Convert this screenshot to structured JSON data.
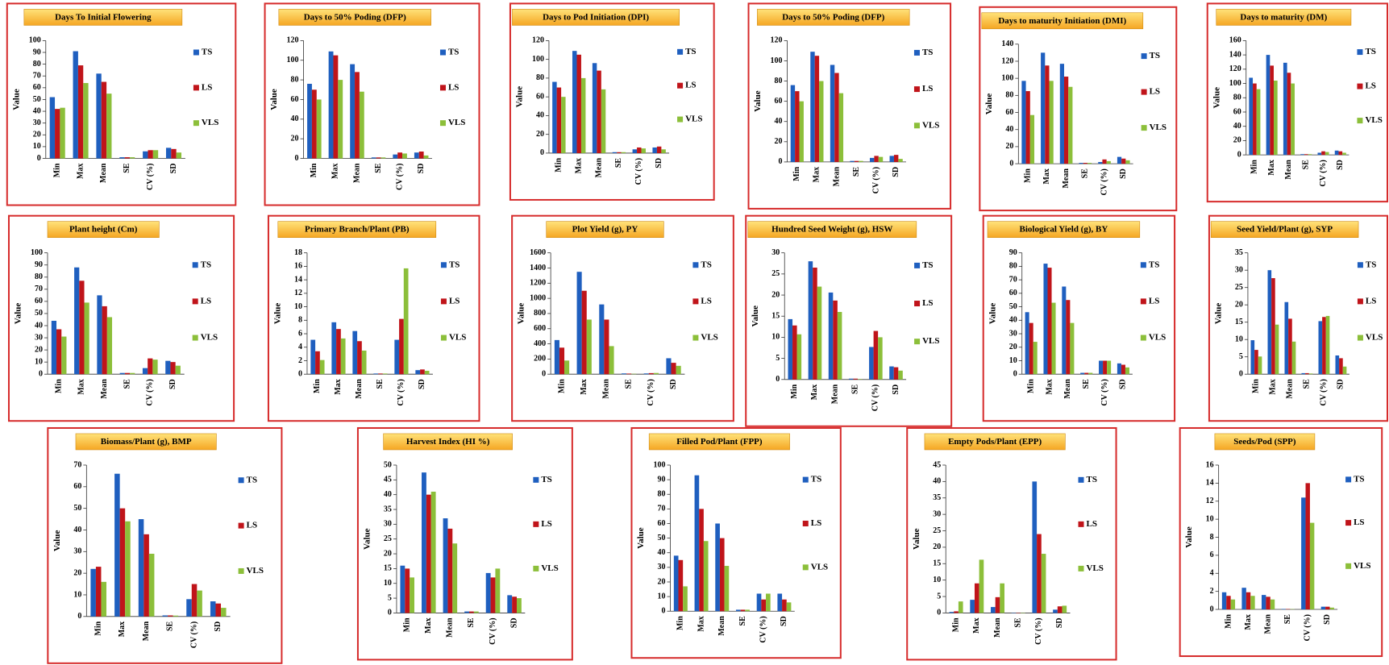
{
  "chart_data": [
    {
      "type": "bar",
      "title": "Days To Initial Flowering",
      "y_label": "Value",
      "categories": [
        "Min",
        "Max",
        "Mean",
        "SE",
        "CV (%)",
        "SD"
      ],
      "ylim": [
        0,
        100
      ],
      "yticks": [
        0,
        10,
        20,
        30,
        40,
        50,
        60,
        70,
        80,
        90,
        100
      ],
      "series": [
        {
          "name": "TS",
          "color": "#1f5fbf",
          "values": [
            52,
            91,
            72,
            1,
            6,
            9
          ]
        },
        {
          "name": "LS",
          "color": "#c0141a",
          "values": [
            42,
            79,
            65,
            1,
            7,
            8
          ]
        },
        {
          "name": "VLS",
          "color": "#8cbf3a",
          "values": [
            43,
            64,
            55,
            1,
            7,
            5
          ]
        }
      ]
    },
    {
      "type": "bar",
      "title": "Days to 50% Poding (DFP)",
      "y_label": "Value",
      "categories": [
        "Min",
        "Max",
        "Mean",
        "SE",
        "CV (%)",
        "SD"
      ],
      "ylim": [
        0,
        120
      ],
      "yticks": [
        0,
        20,
        40,
        60,
        80,
        100,
        120
      ],
      "series": [
        {
          "name": "TS",
          "color": "#1f5fbf",
          "values": [
            76,
            109,
            96,
            1,
            4,
            6
          ]
        },
        {
          "name": "LS",
          "color": "#c0141a",
          "values": [
            70,
            105,
            88,
            1,
            6,
            7
          ]
        },
        {
          "name": "VLS",
          "color": "#8cbf3a",
          "values": [
            60,
            80,
            68,
            1,
            5,
            3
          ]
        }
      ]
    },
    {
      "type": "bar",
      "title": "Days to Pod Initiation (DPI)",
      "y_label": "Value",
      "categories": [
        "Min",
        "Max",
        "Mean",
        "SE",
        "CV (%)",
        "SD"
      ],
      "ylim": [
        0,
        120
      ],
      "yticks": [
        0,
        20,
        40,
        60,
        80,
        100,
        120
      ],
      "series": [
        {
          "name": "TS",
          "color": "#1f5fbf",
          "values": [
            76,
            109,
            96,
            1,
            4,
            6
          ]
        },
        {
          "name": "LS",
          "color": "#c0141a",
          "values": [
            70,
            105,
            88,
            1,
            6,
            7
          ]
        },
        {
          "name": "VLS",
          "color": "#8cbf3a",
          "values": [
            60,
            80,
            68,
            1,
            5,
            4
          ]
        }
      ]
    },
    {
      "type": "bar",
      "title": "Days to 50% Poding (DFP)",
      "y_label": "Value",
      "categories": [
        "Min",
        "Max",
        "Mean",
        "SE",
        "CV (%)",
        "SD"
      ],
      "ylim": [
        0,
        120
      ],
      "yticks": [
        0,
        20,
        40,
        60,
        80,
        100,
        120
      ],
      "series": [
        {
          "name": "TS",
          "color": "#1f5fbf",
          "values": [
            76,
            109,
            96,
            1,
            4,
            6
          ]
        },
        {
          "name": "LS",
          "color": "#c0141a",
          "values": [
            70,
            105,
            88,
            1,
            6,
            7
          ]
        },
        {
          "name": "VLS",
          "color": "#8cbf3a",
          "values": [
            60,
            80,
            68,
            1,
            5,
            3
          ]
        }
      ]
    },
    {
      "type": "bar",
      "title": "Days to maturity Initiation (DMI)",
      "y_label": "Value",
      "categories": [
        "Min",
        "Max",
        "Mean",
        "SE",
        "CV (%)",
        "SD"
      ],
      "ylim": [
        0,
        140
      ],
      "yticks": [
        0,
        20,
        40,
        60,
        80,
        100,
        120,
        140
      ],
      "series": [
        {
          "name": "TS",
          "color": "#1f5fbf",
          "values": [
            97,
            130,
            117,
            1,
            2,
            8
          ]
        },
        {
          "name": "LS",
          "color": "#c0141a",
          "values": [
            85,
            115,
            102,
            1,
            5,
            6
          ]
        },
        {
          "name": "VLS",
          "color": "#8cbf3a",
          "values": [
            57,
            97,
            90,
            1,
            3,
            4
          ]
        }
      ]
    },
    {
      "type": "bar",
      "title": "Days to maturity (DM)",
      "y_label": "Value",
      "categories": [
        "Min",
        "Max",
        "Mean",
        "SE",
        "CV (%)",
        "SD"
      ],
      "ylim": [
        0,
        160
      ],
      "yticks": [
        0,
        20,
        40,
        60,
        80,
        100,
        120,
        140,
        160
      ],
      "series": [
        {
          "name": "TS",
          "color": "#1f5fbf",
          "values": [
            108,
            140,
            129,
            1,
            3,
            6
          ]
        },
        {
          "name": "LS",
          "color": "#c0141a",
          "values": [
            100,
            125,
            115,
            1,
            5,
            5
          ]
        },
        {
          "name": "VLS",
          "color": "#8cbf3a",
          "values": [
            92,
            104,
            100,
            1,
            4,
            3
          ]
        }
      ]
    },
    {
      "type": "bar",
      "title": "Plant height (Cm)",
      "y_label": "Value",
      "categories": [
        "Min",
        "Max",
        "Mean",
        "SE",
        "CV (%)",
        "SD"
      ],
      "ylim": [
        0,
        100
      ],
      "yticks": [
        0,
        10,
        20,
        30,
        40,
        50,
        60,
        70,
        80,
        90,
        100
      ],
      "series": [
        {
          "name": "TS",
          "color": "#1f5fbf",
          "values": [
            44,
            88,
            65,
            1,
            5,
            11
          ]
        },
        {
          "name": "LS",
          "color": "#c0141a",
          "values": [
            37,
            77,
            56,
            1,
            13,
            10
          ]
        },
        {
          "name": "VLS",
          "color": "#8cbf3a",
          "values": [
            31,
            59,
            47,
            1,
            12,
            7
          ]
        }
      ]
    },
    {
      "type": "bar",
      "title": "Primary Branch/Plant (PB)",
      "y_label": "Value",
      "categories": [
        "Min",
        "Max",
        "Mean",
        "SE",
        "CV (%)",
        "SD"
      ],
      "ylim": [
        0,
        18
      ],
      "yticks": [
        0,
        2,
        4,
        6,
        8,
        10,
        12,
        14,
        16,
        18
      ],
      "series": [
        {
          "name": "TS",
          "color": "#1f5fbf",
          "values": [
            5.1,
            7.7,
            6.4,
            0.1,
            5.1,
            0.6
          ]
        },
        {
          "name": "LS",
          "color": "#c0141a",
          "values": [
            3.4,
            6.7,
            4.9,
            0.1,
            8.2,
            0.7
          ]
        },
        {
          "name": "VLS",
          "color": "#8cbf3a",
          "values": [
            2.1,
            5.3,
            3.5,
            0.1,
            15.7,
            0.5
          ]
        }
      ]
    },
    {
      "type": "bar",
      "title": "Plot Yield (g), PY",
      "y_label": "Value",
      "categories": [
        "Min",
        "Max",
        "Mean",
        "SE",
        "CV (%)",
        "SD"
      ],
      "ylim": [
        0,
        1600
      ],
      "yticks": [
        0,
        200,
        400,
        600,
        800,
        1000,
        1200,
        1400,
        1600
      ],
      "series": [
        {
          "name": "TS",
          "color": "#1f5fbf",
          "values": [
            450,
            1350,
            920,
            10,
            10,
            210
          ]
        },
        {
          "name": "LS",
          "color": "#c0141a",
          "values": [
            350,
            1100,
            720,
            8,
            14,
            150
          ]
        },
        {
          "name": "VLS",
          "color": "#8cbf3a",
          "values": [
            180,
            720,
            370,
            5,
            16,
            110
          ]
        }
      ]
    },
    {
      "type": "bar",
      "title": "Hundred Seed Weight (g), HSW",
      "y_label": "Value",
      "categories": [
        "Min",
        "Max",
        "Mean",
        "SE",
        "CV (%)",
        "SD"
      ],
      "ylim": [
        0,
        30
      ],
      "yticks": [
        0,
        5,
        10,
        15,
        20,
        25,
        30
      ],
      "series": [
        {
          "name": "TS",
          "color": "#1f5fbf",
          "values": [
            14.3,
            28,
            20.6,
            0.2,
            7.7,
            3.1
          ]
        },
        {
          "name": "LS",
          "color": "#c0141a",
          "values": [
            12.8,
            26.5,
            18.7,
            0.2,
            11.5,
            2.9
          ]
        },
        {
          "name": "VLS",
          "color": "#8cbf3a",
          "values": [
            10.7,
            22,
            16,
            0.1,
            10,
            2.1
          ]
        }
      ]
    },
    {
      "type": "bar",
      "title": "Biological Yield (g), BY",
      "y_label": "Value",
      "categories": [
        "Min",
        "Max",
        "Mean",
        "SE",
        "CV (%)",
        "SD"
      ],
      "ylim": [
        0,
        90
      ],
      "yticks": [
        0,
        10,
        20,
        30,
        40,
        50,
        60,
        70,
        80,
        90
      ],
      "series": [
        {
          "name": "TS",
          "color": "#1f5fbf",
          "values": [
            46,
            82,
            65,
            1,
            10,
            8
          ]
        },
        {
          "name": "LS",
          "color": "#c0141a",
          "values": [
            38,
            79,
            55,
            1,
            10,
            7
          ]
        },
        {
          "name": "VLS",
          "color": "#8cbf3a",
          "values": [
            24,
            53,
            38,
            1,
            10,
            5
          ]
        }
      ]
    },
    {
      "type": "bar",
      "title": "Seed Yield/Plant (g), SYP",
      "y_label": "Value",
      "categories": [
        "Min",
        "Max",
        "Mean",
        "SE",
        "CV (%)",
        "SD"
      ],
      "ylim": [
        0,
        35
      ],
      "yticks": [
        0,
        5,
        10,
        15,
        20,
        25,
        30,
        35
      ],
      "series": [
        {
          "name": "TS",
          "color": "#1f5fbf",
          "values": [
            9.8,
            30,
            20.8,
            0.3,
            15.3,
            5.4
          ]
        },
        {
          "name": "LS",
          "color": "#c0141a",
          "values": [
            7,
            27.7,
            16,
            0.3,
            16.5,
            4.6
          ]
        },
        {
          "name": "VLS",
          "color": "#8cbf3a",
          "values": [
            5.1,
            14.3,
            9.4,
            0.2,
            16.8,
            2.2
          ]
        }
      ]
    },
    {
      "type": "bar",
      "title": "Biomass/Plant (g), BMP",
      "y_label": "Value",
      "categories": [
        "Min",
        "Max",
        "Mean",
        "SE",
        "CV (%)",
        "SD"
      ],
      "ylim": [
        0,
        70
      ],
      "yticks": [
        0,
        10,
        20,
        30,
        40,
        50,
        60,
        70
      ],
      "series": [
        {
          "name": "TS",
          "color": "#1f5fbf",
          "values": [
            22,
            66,
            45,
            0.5,
            8,
            7
          ]
        },
        {
          "name": "LS",
          "color": "#c0141a",
          "values": [
            23,
            50,
            38,
            0.5,
            15,
            6
          ]
        },
        {
          "name": "VLS",
          "color": "#8cbf3a",
          "values": [
            16,
            44,
            29,
            0.4,
            12,
            4
          ]
        }
      ]
    },
    {
      "type": "bar",
      "title": "Harvest Index (HI %)",
      "y_label": "Value",
      "categories": [
        "Min",
        "Max",
        "Mean",
        "SE",
        "CV (%)",
        "SD"
      ],
      "ylim": [
        0,
        50
      ],
      "yticks": [
        0,
        5,
        10,
        15,
        20,
        25,
        30,
        35,
        40,
        45,
        50
      ],
      "series": [
        {
          "name": "TS",
          "color": "#1f5fbf",
          "values": [
            16,
            47.5,
            32,
            0.5,
            13.5,
            6
          ]
        },
        {
          "name": "LS",
          "color": "#c0141a",
          "values": [
            15,
            40,
            28.5,
            0.5,
            12,
            5.5
          ]
        },
        {
          "name": "VLS",
          "color": "#8cbf3a",
          "values": [
            12,
            41,
            23.5,
            0.5,
            15,
            5
          ]
        }
      ]
    },
    {
      "type": "bar",
      "title": "Filled Pod/Plant (FPP)",
      "y_label": "Value",
      "categories": [
        "Min",
        "Max",
        "Mean",
        "SE",
        "CV (%)",
        "SD"
      ],
      "ylim": [
        0,
        100
      ],
      "yticks": [
        0,
        10,
        20,
        30,
        40,
        50,
        60,
        70,
        80,
        90,
        100
      ],
      "series": [
        {
          "name": "TS",
          "color": "#1f5fbf",
          "values": [
            38,
            93,
            60,
            1,
            12,
            12
          ]
        },
        {
          "name": "LS",
          "color": "#c0141a",
          "values": [
            35,
            70,
            50,
            1,
            8,
            8
          ]
        },
        {
          "name": "VLS",
          "color": "#8cbf3a",
          "values": [
            17,
            48,
            31,
            1,
            12,
            6
          ]
        }
      ]
    },
    {
      "type": "bar",
      "title": "Empty Pods/Plant (EPP)",
      "y_label": "Value",
      "categories": [
        "Min",
        "Max",
        "Mean",
        "SE",
        "CV (%)",
        "SD"
      ],
      "ylim": [
        0,
        45
      ],
      "yticks": [
        0,
        5,
        10,
        15,
        20,
        25,
        30,
        35,
        40,
        45
      ],
      "series": [
        {
          "name": "TS",
          "color": "#1f5fbf",
          "values": [
            0.3,
            4,
            1.8,
            0.1,
            40,
            1
          ]
        },
        {
          "name": "LS",
          "color": "#c0141a",
          "values": [
            0.5,
            9,
            4.8,
            0.1,
            24,
            2
          ]
        },
        {
          "name": "VLS",
          "color": "#8cbf3a",
          "values": [
            3.5,
            16.2,
            9,
            0.1,
            18,
            2.2
          ]
        }
      ]
    },
    {
      "type": "bar",
      "title": "Seeds/Pod (SPP)",
      "y_label": "Value",
      "categories": [
        "Min",
        "Max",
        "Mean",
        "SE",
        "CV (%)",
        "SD"
      ],
      "ylim": [
        0,
        16
      ],
      "yticks": [
        0,
        2,
        4,
        6,
        8,
        10,
        12,
        14,
        16
      ],
      "series": [
        {
          "name": "TS",
          "color": "#1f5fbf",
          "values": [
            1.9,
            2.4,
            1.6,
            0.05,
            12.4,
            0.3
          ]
        },
        {
          "name": "LS",
          "color": "#c0141a",
          "values": [
            1.5,
            1.9,
            1.4,
            0.04,
            14,
            0.3
          ]
        },
        {
          "name": "VLS",
          "color": "#8cbf3a",
          "values": [
            1.1,
            1.5,
            1.1,
            0.03,
            9.6,
            0.2
          ]
        }
      ]
    }
  ]
}
